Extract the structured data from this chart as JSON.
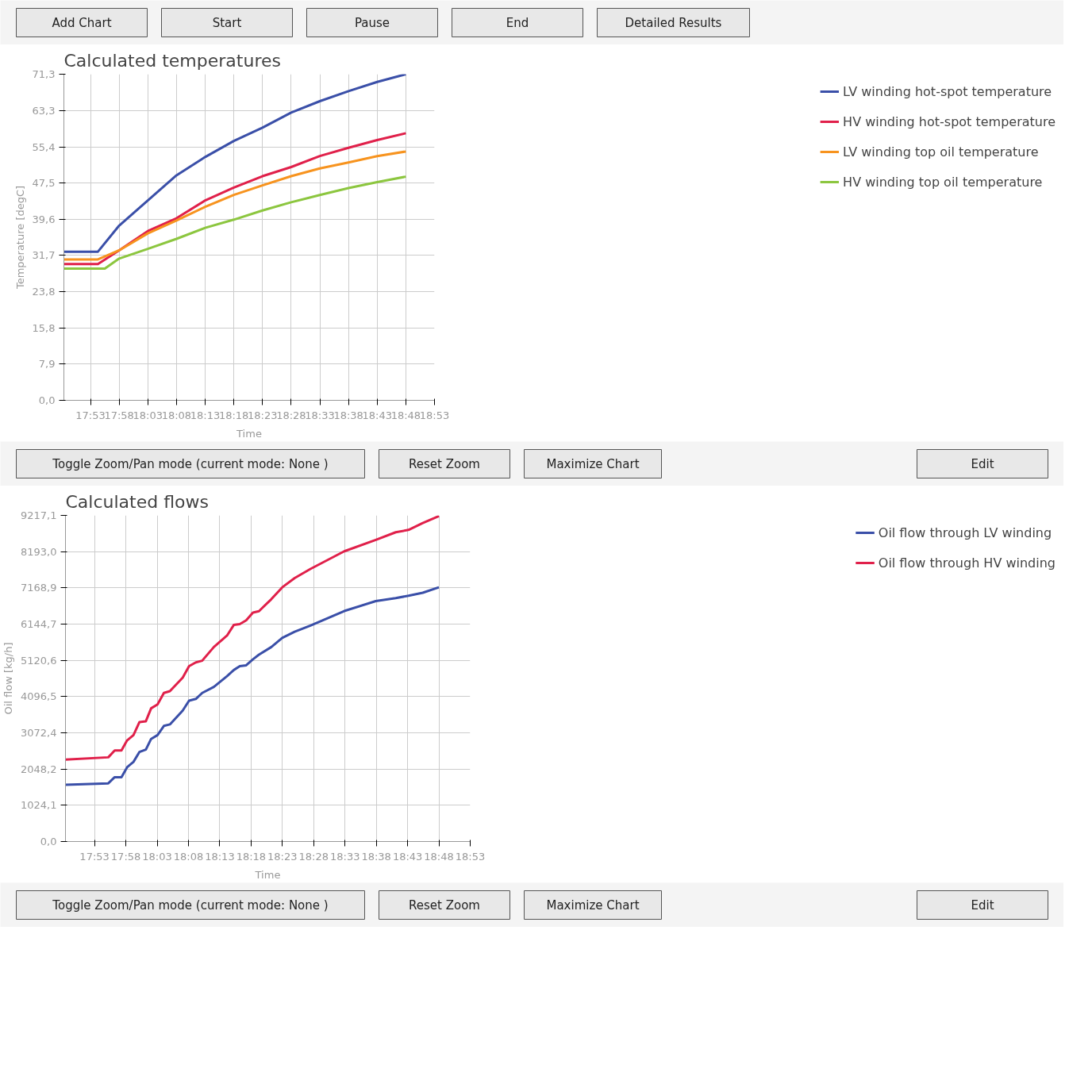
{
  "chart_data": [
    {
      "type": "other",
      "annotations": [
        "Add Chart",
        "Start",
        "Pause",
        "End",
        "Detailed Results"
      ]
    },
    {
      "type": "line",
      "title": "Calculated temperatures",
      "xlabel": "Time",
      "ylabel": "Temperature [degC]",
      "grid": true,
      "legend": "right",
      "annotations": [
        "Toggle Zoom/Pan mode (current mode: None )",
        "Reset Zoom",
        "Maximize Chart",
        "Edit"
      ],
      "xlim": [
        17.806,
        18.8833
      ],
      "ylim": [
        0,
        71.3
      ],
      "xticks": [
        {
          "value": 17.8833,
          "label": "17:53"
        },
        {
          "value": 17.9667,
          "label": "17:58"
        },
        {
          "value": 18.05,
          "label": "18:03"
        },
        {
          "value": 18.1333,
          "label": "18:08"
        },
        {
          "value": 18.2167,
          "label": "18:13"
        },
        {
          "value": 18.3,
          "label": "18:18"
        },
        {
          "value": 18.3833,
          "label": "18:23"
        },
        {
          "value": 18.4667,
          "label": "18:28"
        },
        {
          "value": 18.55,
          "label": "18:33"
        },
        {
          "value": 18.6333,
          "label": "18:38"
        },
        {
          "value": 18.7167,
          "label": "18:43"
        },
        {
          "value": 18.8,
          "label": "18:48"
        },
        {
          "value": 18.8833,
          "label": "18:53"
        }
      ],
      "yticks": [
        {
          "value": 0,
          "label": "0,0"
        },
        {
          "value": 7.9,
          "label": "7,9"
        },
        {
          "value": 15.8,
          "label": "15,8"
        },
        {
          "value": 23.8,
          "label": "23,8"
        },
        {
          "value": 31.7,
          "label": "31,7"
        },
        {
          "value": 39.6,
          "label": "39,6"
        },
        {
          "value": 47.5,
          "label": "47,5"
        },
        {
          "value": 55.4,
          "label": "55,4"
        },
        {
          "value": 63.3,
          "label": "63,3"
        },
        {
          "value": 71.3,
          "label": "71,3"
        }
      ],
      "x": [
        17.806,
        17.905,
        17.9667,
        18.05,
        18.1333,
        18.2167,
        18.3,
        18.3833,
        18.4667,
        18.55,
        18.6333,
        18.7167,
        18.8
      ],
      "series": [
        {
          "name": "LV winding hot-spot temperature",
          "color": "#3a4fa8",
          "values": [
            32.5,
            32.5,
            38.2,
            43.7,
            49.2,
            53.2,
            56.7,
            59.6,
            62.9,
            65.4,
            67.6,
            69.6,
            71.3
          ]
        },
        {
          "name": "HV winding hot-spot temperature",
          "color": "#e0204a",
          "values": [
            29.8,
            29.8,
            32.8,
            37.0,
            39.8,
            43.7,
            46.5,
            49.0,
            51.0,
            53.4,
            55.2,
            56.9,
            58.4
          ]
        },
        {
          "name": "LV winding top oil temperature",
          "color": "#f7931e",
          "values": [
            30.8,
            30.8,
            32.8,
            36.5,
            39.3,
            42.3,
            44.9,
            47.0,
            49.0,
            50.7,
            52.0,
            53.4,
            54.4
          ]
        },
        {
          "name": "HV winding top oil temperature",
          "color": "#8cc63f",
          "x": [
            17.806,
            17.925,
            17.9667,
            18.05,
            18.1333,
            18.2167,
            18.3,
            18.3833,
            18.4667,
            18.55,
            18.6333,
            18.7167,
            18.8
          ],
          "values": [
            28.8,
            28.8,
            31.0,
            33.1,
            35.3,
            37.7,
            39.5,
            41.5,
            43.3,
            44.9,
            46.4,
            47.7,
            48.9
          ]
        }
      ]
    },
    {
      "type": "line",
      "title": "Calculated flows",
      "xlabel": "Time",
      "ylabel": "Oil flow [kg/h]",
      "grid": true,
      "legend": "right",
      "annotations": [
        "Toggle Zoom/Pan mode (current mode: None )",
        "Reset Zoom",
        "Maximize Chart",
        "Edit"
      ],
      "xlim": [
        17.806,
        18.8833
      ],
      "ylim": [
        0,
        9217.1
      ],
      "xticks": [
        {
          "value": 17.8833,
          "label": "17:53"
        },
        {
          "value": 17.9667,
          "label": "17:58"
        },
        {
          "value": 18.05,
          "label": "18:03"
        },
        {
          "value": 18.1333,
          "label": "18:08"
        },
        {
          "value": 18.2167,
          "label": "18:13"
        },
        {
          "value": 18.3,
          "label": "18:18"
        },
        {
          "value": 18.3833,
          "label": "18:23"
        },
        {
          "value": 18.4667,
          "label": "18:28"
        },
        {
          "value": 18.55,
          "label": "18:33"
        },
        {
          "value": 18.6333,
          "label": "18:38"
        },
        {
          "value": 18.7167,
          "label": "18:43"
        },
        {
          "value": 18.8,
          "label": "18:48"
        },
        {
          "value": 18.8833,
          "label": "18:53"
        }
      ],
      "yticks": [
        {
          "value": 0,
          "label": "0,0"
        },
        {
          "value": 1024.1,
          "label": "1024,1"
        },
        {
          "value": 2048.2,
          "label": "2048,2"
        },
        {
          "value": 3072.4,
          "label": "3072,4"
        },
        {
          "value": 4096.5,
          "label": "4096,5"
        },
        {
          "value": 5120.6,
          "label": "5120,6"
        },
        {
          "value": 6144.7,
          "label": "6144,7"
        },
        {
          "value": 7168.9,
          "label": "7168,9"
        },
        {
          "value": 8193.0,
          "label": "8193,0"
        },
        {
          "value": 9217.1,
          "label": "9217,1"
        }
      ],
      "x": [
        17.806,
        17.92,
        17.937,
        17.955,
        17.97,
        17.987,
        18.003,
        18.02,
        18.034,
        18.051,
        18.068,
        18.084,
        18.118,
        18.135,
        18.153,
        18.17,
        18.201,
        18.236,
        18.254,
        18.27,
        18.287,
        18.305,
        18.321,
        18.354,
        18.383,
        18.416,
        18.458,
        18.548,
        18.632,
        18.685,
        18.719,
        18.757,
        18.8
      ],
      "series": [
        {
          "name": "Oil flow through LV winding",
          "color": "#3a4fa8",
          "values": [
            1601,
            1645,
            1818,
            1818,
            2099,
            2251,
            2532,
            2600,
            2900,
            3008,
            3268,
            3310,
            3700,
            3982,
            4030,
            4200,
            4371,
            4674,
            4847,
            4955,
            4980,
            5150,
            5280,
            5497,
            5756,
            5929,
            6102,
            6514,
            6795,
            6881,
            6946,
            7030,
            7184
          ]
        },
        {
          "name": "Oil flow through HV winding",
          "color": "#e0204a",
          "values": [
            2316,
            2380,
            2575,
            2575,
            2857,
            3008,
            3376,
            3400,
            3765,
            3874,
            4198,
            4250,
            4631,
            4955,
            5064,
            5110,
            5497,
            5821,
            6120,
            6146,
            6250,
            6471,
            6510,
            6850,
            7184,
            7444,
            7704,
            8202,
            8526,
            8740,
            8807,
            9000,
            9197
          ]
        }
      ]
    }
  ]
}
